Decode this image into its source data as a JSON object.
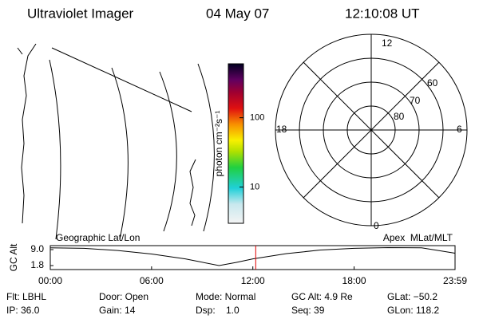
{
  "header": {
    "title": "Ultraviolet Imager",
    "date": "04 May 07",
    "time": "12:10:08 UT"
  },
  "colorbar": {
    "label": "photon cm⁻²s⁻¹",
    "lim": [
      3,
      600
    ],
    "ticks": [
      10,
      100
    ],
    "log": true
  },
  "polar": {
    "mlt_labels": [
      "12",
      "6",
      "0",
      "18"
    ],
    "lat_labels": [
      "80",
      "70",
      "60"
    ]
  },
  "chart_data": {
    "type": "line",
    "ylabel": "GC Alt",
    "left_label": "Geographic Lat/Lon",
    "right_label": "Apex  MLat/MLT",
    "x": [
      0,
      2,
      4,
      6,
      8,
      10,
      11,
      12,
      14,
      16,
      18,
      20,
      22,
      23.98
    ],
    "values": [
      9.8,
      9.6,
      8.6,
      7.0,
      4.8,
      1.8,
      3.2,
      4.8,
      7.2,
      8.8,
      9.6,
      9.9,
      9.8,
      7.4
    ],
    "xlim": [
      0,
      23.98
    ],
    "ylim": [
      0,
      10.8
    ],
    "xticks": [
      {
        "value": 0,
        "label": "00:00"
      },
      {
        "value": 6,
        "label": "06:00"
      },
      {
        "value": 12,
        "label": "12:00"
      },
      {
        "value": 18,
        "label": "18:00"
      },
      {
        "value": 23.98,
        "label": "23:59"
      }
    ],
    "yticks": [
      {
        "value": 9,
        "label": "9.0"
      },
      1.8
    ],
    "marker_x": 12.17,
    "marker_color": "#e00000",
    "color": "#000000"
  },
  "footer": [
    [
      "Flt: LBHL",
      "IP: 36.0"
    ],
    [
      "Door: Open",
      "Gain: 14"
    ],
    [
      "Mode: Normal",
      "Dsp:    1.0"
    ],
    [
      "GC Alt: 4.9 Re",
      "Seq: 39"
    ],
    [
      "GLat: −50.2",
      "GLon: 118.2"
    ]
  ]
}
